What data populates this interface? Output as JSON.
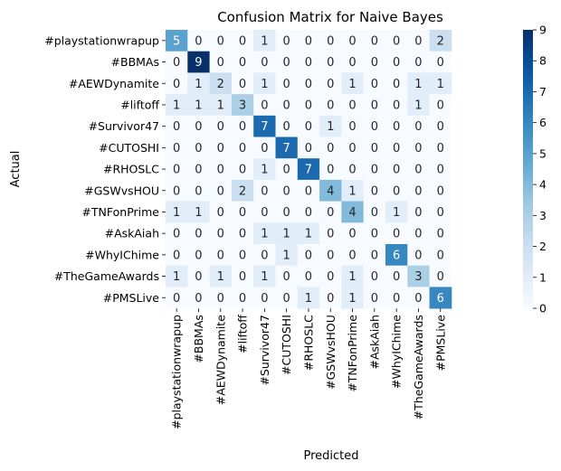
{
  "chart_data": {
    "type": "heatmap",
    "title": "Confusion Matrix for Naive Bayes",
    "xlabel": "Predicted",
    "ylabel": "Actual",
    "rows": [
      "#playstationwrapup",
      "#BBMAs",
      "#AEWDynamite",
      "#liftoff",
      "#Survivor47",
      "#CUTOSHI",
      "#RHOSLC",
      "#GSWvsHOU",
      "#TNFonPrime",
      "#AskAiah",
      "#WhyIChime",
      "#TheGameAwards",
      "#PMSLive"
    ],
    "columns": [
      "#playstationwrapup",
      "#BBMAs",
      "#AEWDynamite",
      "#liftoff",
      "#Survivor47",
      "#CUTOSHI",
      "#RHOSLC",
      "#GSWvsHOU",
      "#TNFonPrime",
      "#AskAiah",
      "#WhyIChime",
      "#TheGameAwards",
      "#PMSLive"
    ],
    "values": [
      [
        5,
        0,
        0,
        0,
        1,
        0,
        0,
        0,
        0,
        0,
        0,
        0,
        2
      ],
      [
        0,
        9,
        0,
        0,
        0,
        0,
        0,
        0,
        0,
        0,
        0,
        0,
        0
      ],
      [
        0,
        1,
        2,
        0,
        1,
        0,
        0,
        0,
        1,
        0,
        0,
        1,
        1
      ],
      [
        1,
        1,
        1,
        3,
        0,
        0,
        0,
        0,
        0,
        0,
        0,
        1,
        0
      ],
      [
        0,
        0,
        0,
        0,
        7,
        0,
        0,
        1,
        0,
        0,
        0,
        0,
        0
      ],
      [
        0,
        0,
        0,
        0,
        0,
        7,
        0,
        0,
        0,
        0,
        0,
        0,
        0
      ],
      [
        0,
        0,
        0,
        0,
        1,
        0,
        7,
        0,
        0,
        0,
        0,
        0,
        0
      ],
      [
        0,
        0,
        0,
        2,
        0,
        0,
        0,
        4,
        1,
        0,
        0,
        0,
        0
      ],
      [
        1,
        1,
        0,
        0,
        0,
        0,
        0,
        0,
        4,
        0,
        1,
        0,
        0
      ],
      [
        0,
        0,
        0,
        0,
        1,
        1,
        1,
        0,
        0,
        0,
        0,
        0,
        0
      ],
      [
        0,
        0,
        0,
        0,
        0,
        1,
        0,
        0,
        0,
        0,
        6,
        0,
        0
      ],
      [
        1,
        0,
        1,
        0,
        1,
        0,
        0,
        0,
        1,
        0,
        0,
        3,
        0
      ],
      [
        0,
        0,
        0,
        0,
        0,
        0,
        1,
        0,
        1,
        0,
        0,
        0,
        6
      ]
    ],
    "colorbar": {
      "min": 0,
      "max": 9,
      "ticks": [
        0,
        1,
        2,
        3,
        4,
        5,
        6,
        7,
        8,
        9
      ],
      "colormap": "Blues"
    },
    "annotations": true
  }
}
